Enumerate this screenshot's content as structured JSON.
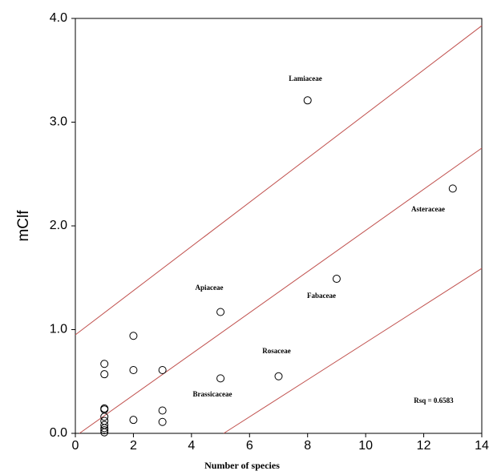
{
  "chart_data": {
    "type": "scatter",
    "x_label": "Number of species",
    "y_label": "mClf",
    "x": [
      1,
      1,
      1,
      1,
      1,
      1,
      1,
      1,
      1,
      1,
      2,
      2,
      2,
      3,
      3,
      3,
      5,
      5,
      7,
      8,
      9,
      13
    ],
    "values": [
      0.67,
      0.57,
      0.24,
      0.23,
      0.16,
      0.12,
      0.08,
      0.05,
      0.03,
      0.01,
      0.94,
      0.61,
      0.13,
      0.61,
      0.22,
      0.11,
      1.17,
      0.53,
      0.55,
      3.21,
      1.49,
      2.36
    ],
    "color": "#000000",
    "lines": [
      {
        "color": "#c0504d",
        "x": [
          0,
          14
        ],
        "values": [
          0.95,
          3.93
        ]
      },
      {
        "color": "#c0504d",
        "x": [
          0.14,
          14
        ],
        "values": [
          0,
          2.75
        ]
      },
      {
        "color": "#c0504d",
        "x": [
          5.11,
          14
        ],
        "values": [
          0,
          1.59
        ]
      }
    ],
    "annotations": [
      "Lamiaceae",
      "Asteraceae",
      "Apiaceae",
      "Fabaceae",
      "Rosaceae",
      "Brassicaceae",
      "Rsq = 0.6583"
    ],
    "xlim": [
      0,
      14
    ],
    "ylim": [
      0,
      4
    ],
    "xticks": [
      0,
      2,
      4,
      6,
      8,
      10,
      12,
      14
    ],
    "yticks": [
      {
        "value": 0,
        "label": "0.0"
      },
      {
        "value": 1,
        "label": "1.0"
      },
      {
        "value": 2,
        "label": "2.0"
      },
      {
        "value": 3,
        "label": "3.0"
      },
      {
        "value": 4,
        "label": "4.0"
      }
    ],
    "grid": false
  }
}
